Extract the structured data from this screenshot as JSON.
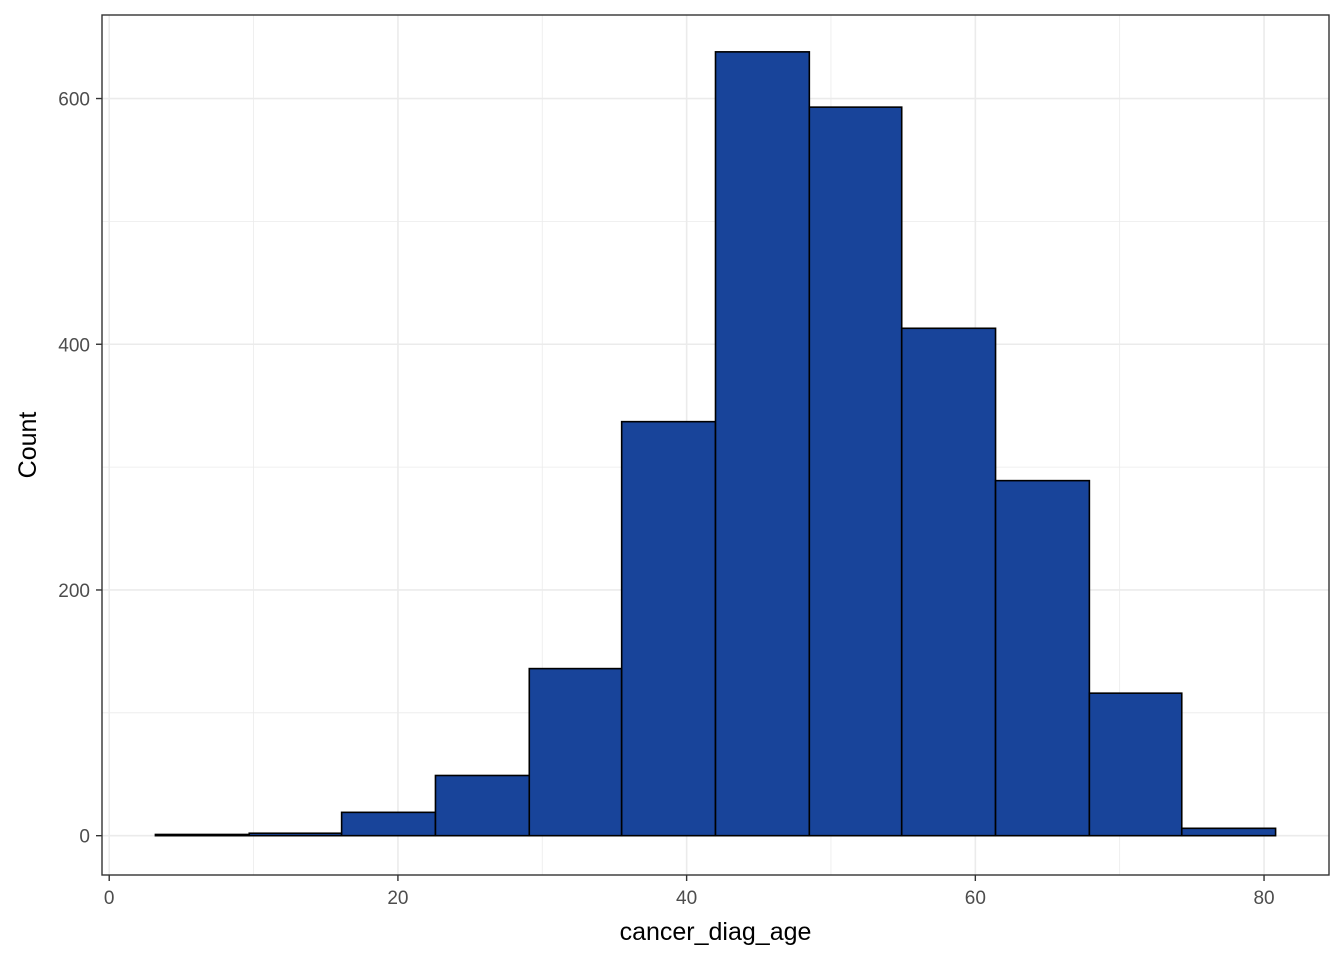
{
  "chart_data": {
    "type": "histogram",
    "xlabel": "cancer_diag_age",
    "ylabel": "Count",
    "xlim": [
      -0.5,
      84.5
    ],
    "ylim": [
      -32,
      668
    ],
    "x_ticks": [
      0,
      20,
      40,
      60,
      80
    ],
    "y_ticks": [
      0,
      200,
      400,
      600
    ],
    "x_minor_ticks": [
      10,
      30,
      50,
      70
    ],
    "y_minor_ticks": [
      100,
      300,
      500
    ],
    "grid": true,
    "bins": [
      {
        "x0": 3.2,
        "x1": 9.7,
        "count": 1
      },
      {
        "x0": 9.7,
        "x1": 16.1,
        "count": 2
      },
      {
        "x0": 16.1,
        "x1": 22.6,
        "count": 19
      },
      {
        "x0": 22.6,
        "x1": 29.1,
        "count": 49
      },
      {
        "x0": 29.1,
        "x1": 35.5,
        "count": 136
      },
      {
        "x0": 35.5,
        "x1": 42.0,
        "count": 337
      },
      {
        "x0": 42.0,
        "x1": 48.5,
        "count": 638
      },
      {
        "x0": 48.5,
        "x1": 54.9,
        "count": 593
      },
      {
        "x0": 54.9,
        "x1": 61.4,
        "count": 413
      },
      {
        "x0": 61.4,
        "x1": 67.9,
        "count": 289
      },
      {
        "x0": 67.9,
        "x1": 74.3,
        "count": 116
      },
      {
        "x0": 74.3,
        "x1": 80.8,
        "count": 6
      }
    ],
    "colors": {
      "fill": "#18449A",
      "stroke": "#000000",
      "grid": "#ebebeb",
      "panel_border": "#333333"
    }
  }
}
